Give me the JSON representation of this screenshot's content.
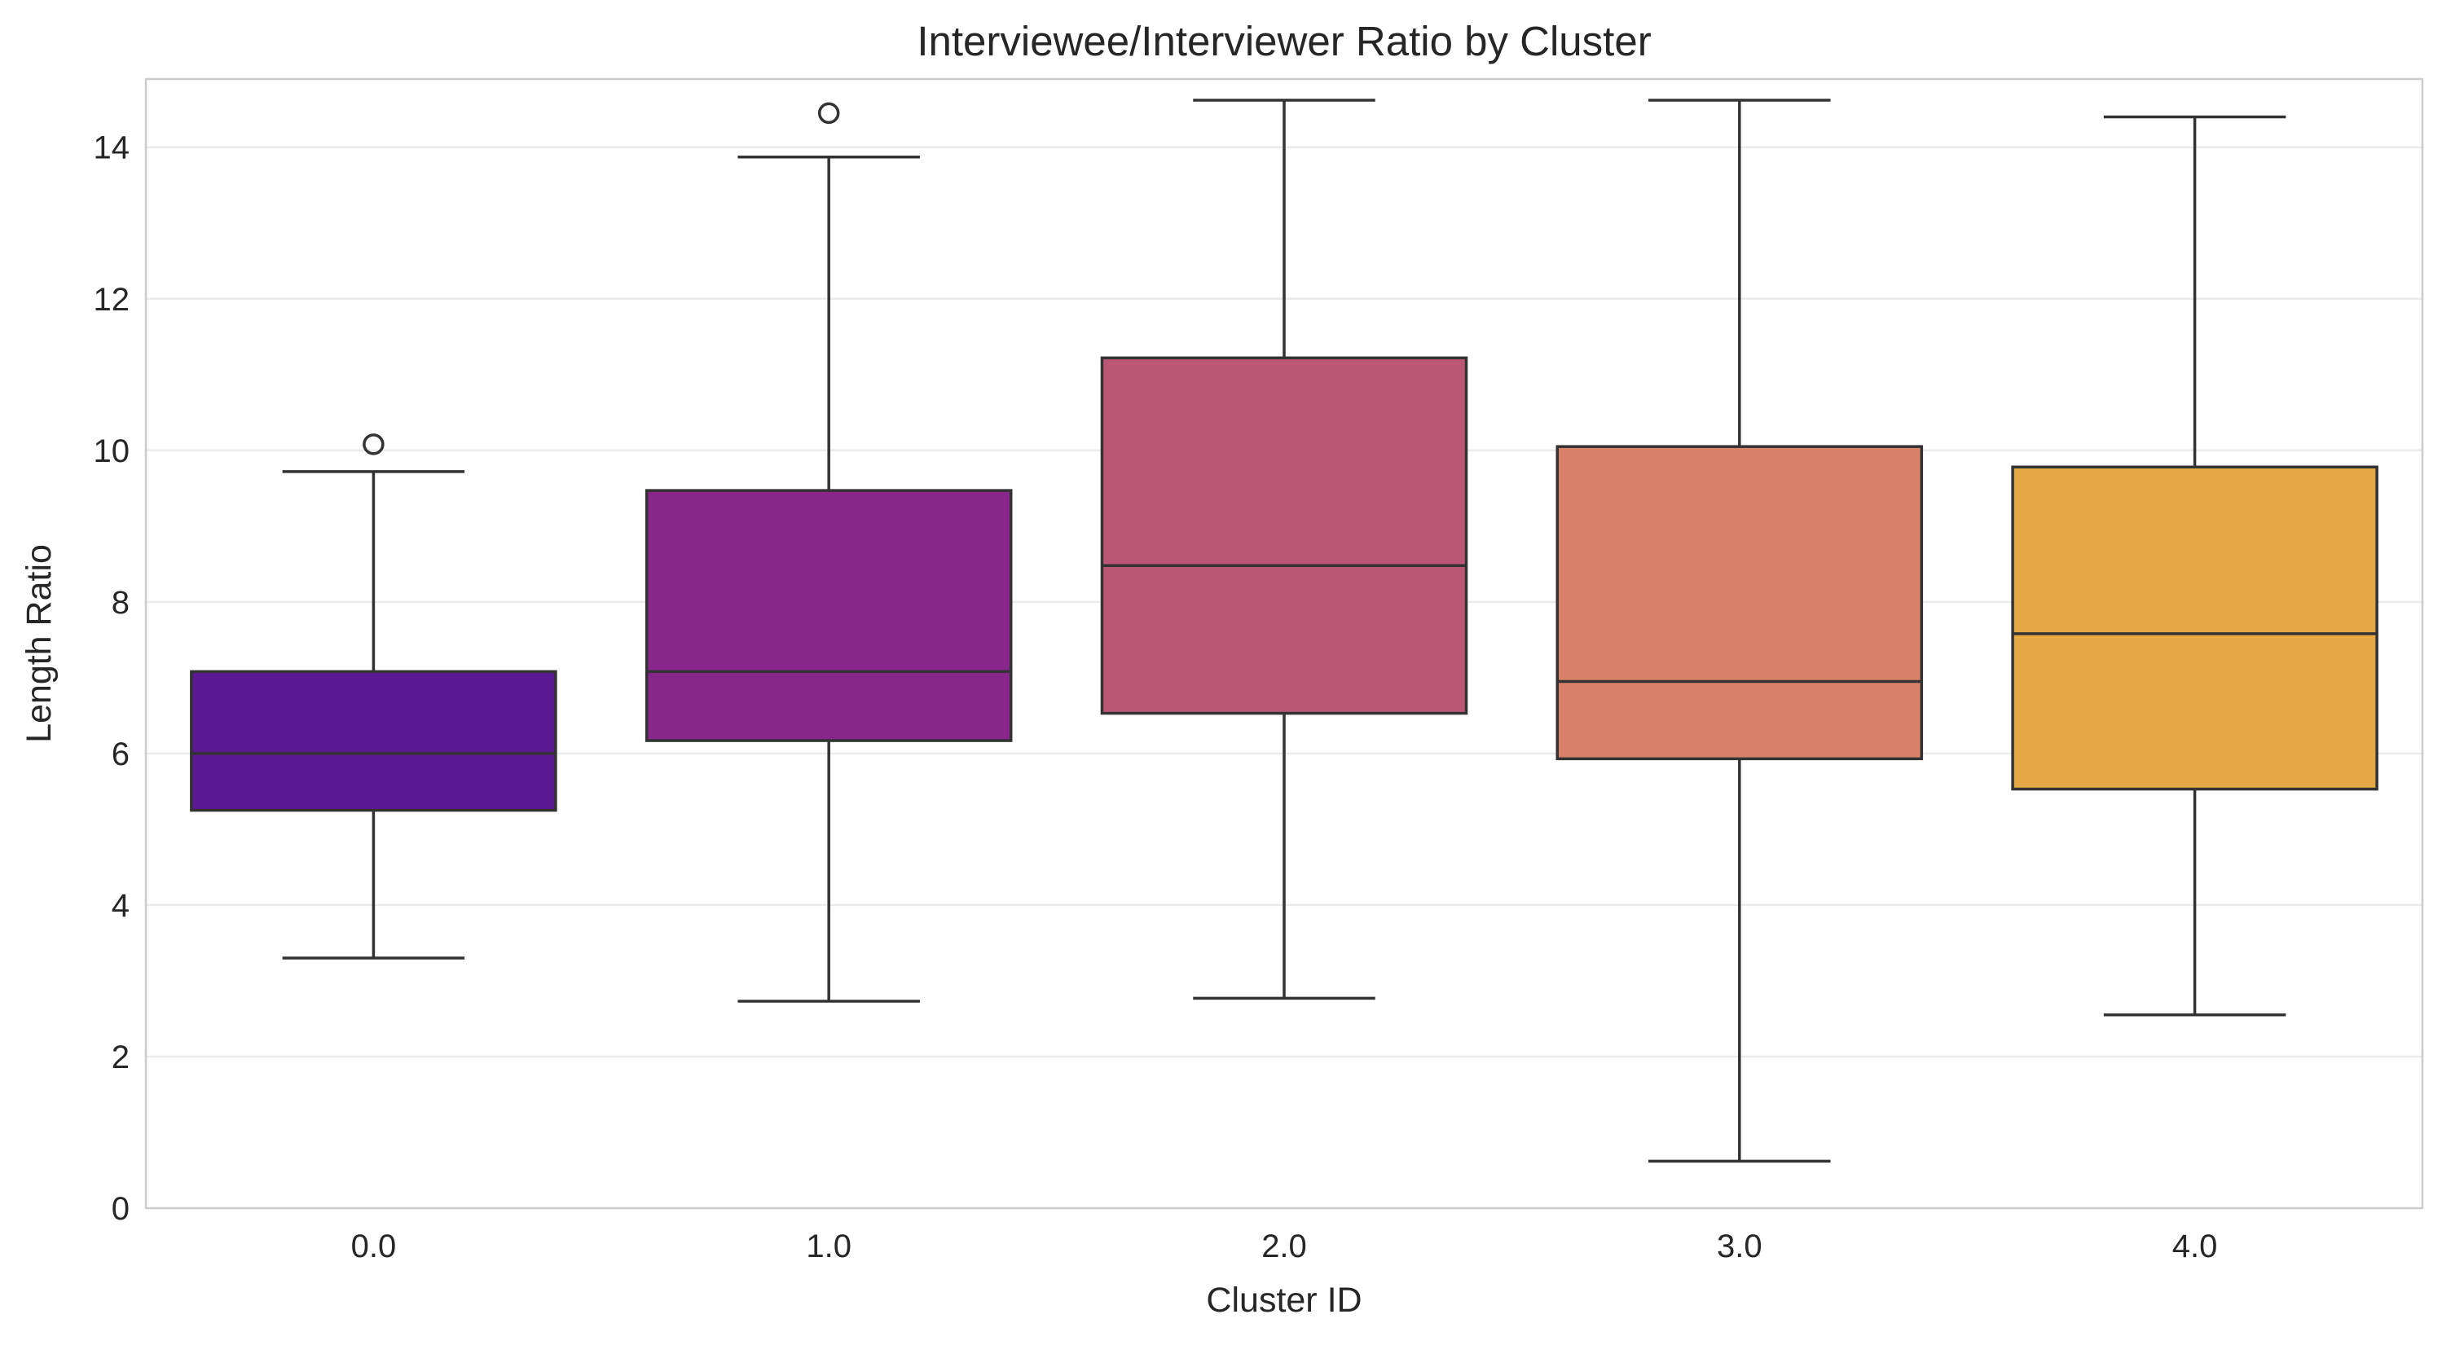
{
  "chart_data": {
    "type": "box",
    "title": "Interviewee/Interviewer Ratio by Cluster",
    "xlabel": "Cluster ID",
    "ylabel": "Length Ratio",
    "ylim": [
      0,
      14.9
    ],
    "y_ticks": [
      0,
      2,
      4,
      6,
      8,
      10,
      12,
      14
    ],
    "y_tick_labels": [
      "0",
      "2",
      "4",
      "6",
      "8",
      "10",
      "12",
      "14"
    ],
    "grid": "horizontal",
    "legend": "none",
    "categories": [
      "0.0",
      "1.0",
      "2.0",
      "3.0",
      "4.0"
    ],
    "boxes": [
      {
        "category": "0.0",
        "whislo": 3.3,
        "q1": 5.25,
        "median": 6.0,
        "q3": 7.08,
        "whishi": 9.72,
        "fliers": [
          10.08
        ],
        "color": "#5c1793"
      },
      {
        "category": "1.0",
        "whislo": 2.73,
        "q1": 6.17,
        "median": 7.08,
        "q3": 9.47,
        "whishi": 13.87,
        "fliers": [
          14.45
        ],
        "color": "#89268c"
      },
      {
        "category": "2.0",
        "whislo": 2.77,
        "q1": 6.53,
        "median": 8.48,
        "q3": 11.22,
        "whishi": 14.62,
        "fliers": [],
        "color": "#bb5677"
      },
      {
        "category": "3.0",
        "whislo": 0.62,
        "q1": 5.93,
        "median": 6.95,
        "q3": 10.05,
        "whishi": 14.62,
        "fliers": [],
        "color": "#da8268"
      },
      {
        "category": "4.0",
        "whislo": 2.55,
        "q1": 5.53,
        "median": 7.58,
        "q3": 9.78,
        "whishi": 14.4,
        "fliers": [],
        "color": "#e4a945"
      }
    ]
  }
}
